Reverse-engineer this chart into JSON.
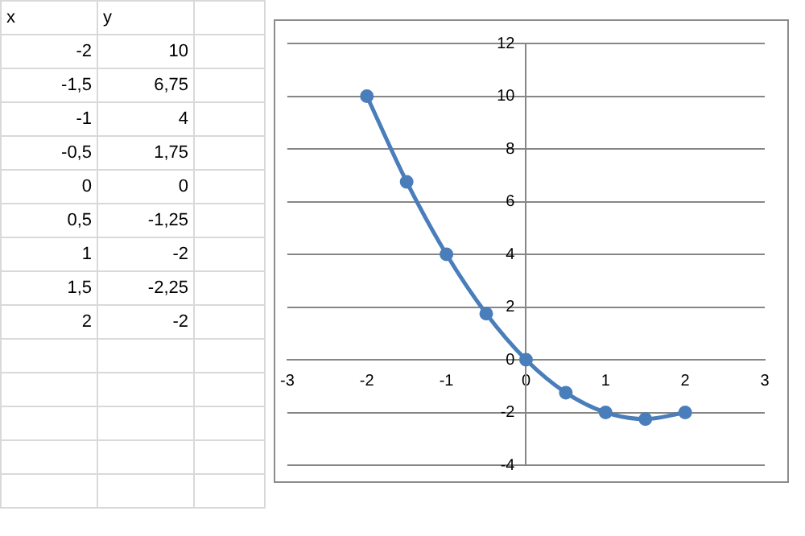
{
  "chart_data": {
    "type": "line",
    "annotations": [
      "x",
      "y",
      "-2",
      "10",
      "-1,5",
      "6,75",
      "-1",
      "4",
      "-0,5",
      "1,75",
      "0",
      "0",
      "0,5",
      "-1,25",
      "1",
      "-2",
      "1,5",
      "-2,25",
      "2",
      "-2"
    ],
    "x": [
      -2,
      -1.5,
      -1,
      -0.5,
      0,
      0.5,
      1,
      1.5,
      2
    ],
    "series": [
      {
        "color": "#4a7ebb",
        "values": [
          10,
          6.75,
          4,
          1.75,
          0,
          -1.25,
          -2,
          -2.25,
          -2
        ]
      }
    ],
    "xlim": [
      -3,
      3
    ],
    "xticks": [
      -3,
      -2,
      -1,
      0,
      1,
      2,
      3
    ],
    "ylim": [
      -4,
      12
    ],
    "yticks": [
      -4,
      -2,
      0,
      2,
      4,
      6,
      8,
      10,
      12
    ],
    "grid": "y",
    "marker": "circle",
    "line_style": "solid",
    "legend": false
  }
}
